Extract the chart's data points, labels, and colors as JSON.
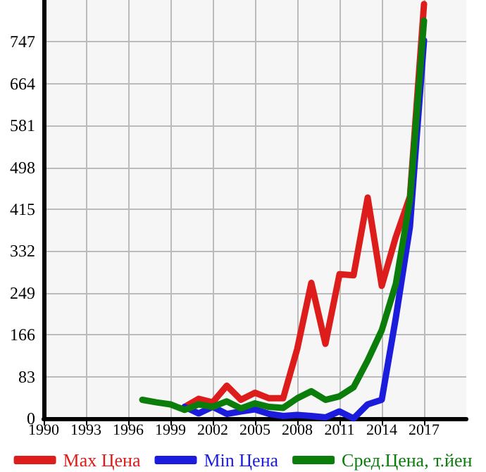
{
  "chart_data": {
    "type": "line",
    "xlim": [
      1990,
      2020
    ],
    "xticks": [
      1990,
      1993,
      1996,
      1999,
      2002,
      2005,
      2008,
      2011,
      2014,
      2017
    ],
    "ylim": [
      0,
      830
    ],
    "yticks": [
      0,
      83,
      166,
      249,
      332,
      415,
      498,
      581,
      664,
      747
    ],
    "grid": true,
    "legend": "bottom",
    "marker": "none",
    "line_style": "solid",
    "series": [
      {
        "name": "Max Цена",
        "color": "#dd1c1c",
        "x": [
          2000,
          2001,
          2002,
          2003,
          2004,
          2005,
          2006,
          2007,
          2008,
          2009,
          2010,
          2011,
          2012,
          2013,
          2014,
          2015,
          2016,
          2017
        ],
        "values": [
          23,
          39,
          32,
          65,
          37,
          51,
          40,
          40,
          138,
          269,
          148,
          286,
          284,
          438,
          263,
          360,
          440,
          822
        ]
      },
      {
        "name": "Min Цена",
        "color": "#1c1cdd",
        "x": [
          2000,
          2001,
          2002,
          2003,
          2004,
          2005,
          2006,
          2007,
          2008,
          2009,
          2010,
          2011,
          2012,
          2013,
          2014,
          2015,
          2016,
          2017
        ],
        "values": [
          23,
          10,
          23,
          9,
          14,
          18,
          9,
          5,
          7,
          5,
          2,
          14,
          0,
          28,
          37,
          200,
          380,
          750
        ]
      },
      {
        "name": "Сред.Цена, т.йен",
        "color": "#0a7d0a",
        "x": [
          1997,
          1998,
          1999,
          2000,
          2001,
          2002,
          2003,
          2004,
          2005,
          2006,
          2007,
          2008,
          2009,
          2010,
          2011,
          2012,
          2013,
          2014,
          2015,
          2016,
          2017
        ],
        "values": [
          37,
          32,
          28,
          17,
          28,
          23,
          34,
          20,
          30,
          23,
          21,
          40,
          54,
          37,
          44,
          62,
          115,
          175,
          267,
          433,
          789
        ]
      }
    ]
  }
}
